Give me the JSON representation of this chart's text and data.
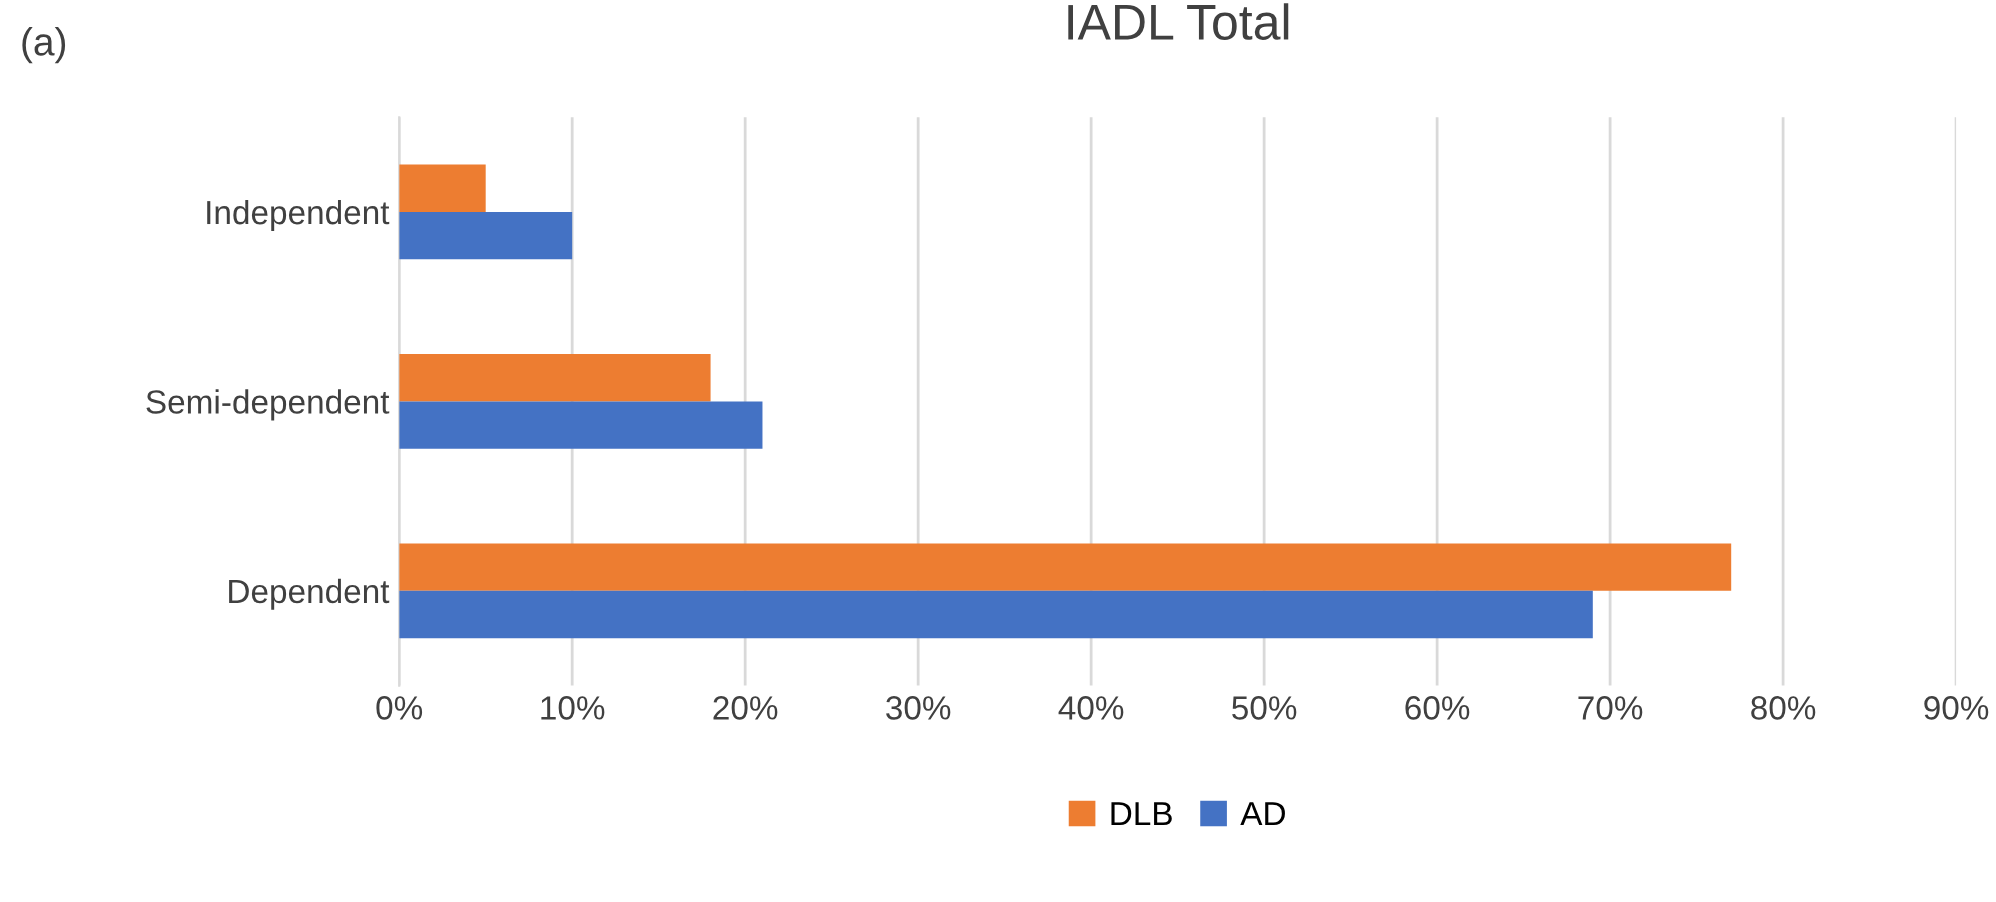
{
  "chart_data": {
    "type": "bar",
    "orientation": "horizontal",
    "title": "IADL Total",
    "annotations": [
      "(a)"
    ],
    "categories": [
      "Independent",
      "Semi-dependent",
      "Dependent"
    ],
    "series": [
      {
        "name": "DLB",
        "color": "#ed7d31",
        "values": [
          5,
          18,
          77
        ]
      },
      {
        "name": "AD",
        "color": "#4472c4",
        "values": [
          10,
          21,
          69
        ]
      }
    ],
    "xlim": [
      0,
      90
    ],
    "xticks": [
      {
        "value": 0,
        "label": "0%"
      },
      {
        "value": 10,
        "label": "10%"
      },
      {
        "value": 20,
        "label": "20%"
      },
      {
        "value": 30,
        "label": "30%"
      },
      {
        "value": 40,
        "label": "40%"
      },
      {
        "value": 50,
        "label": "50%"
      },
      {
        "value": 60,
        "label": "60%"
      },
      {
        "value": 70,
        "label": "70%"
      },
      {
        "value": 80,
        "label": "80%"
      },
      {
        "value": 90,
        "label": "90%"
      }
    ],
    "grid": "x",
    "legend": "bottom"
  }
}
